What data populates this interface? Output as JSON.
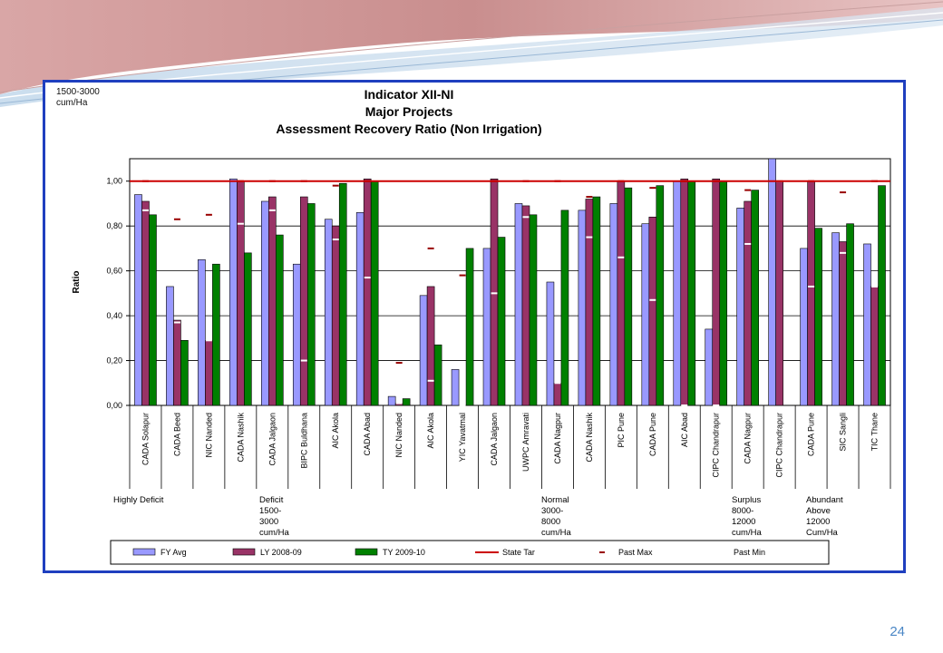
{
  "range_note": "1500-3000\ncum/Ha",
  "page_number": "24",
  "colors": {
    "fy_avg": "#9999ff",
    "ly": "#993366",
    "ty": "#008000",
    "state_target": "#cc0000",
    "past_max": "#990000",
    "past_min": "#ffffff",
    "frame": "#1f3fbf"
  },
  "chart_data": {
    "type": "bar",
    "title": [
      "Indicator XII-NI",
      "Major Projects",
      "Assessment Recovery Ratio (Non Irrigation)"
    ],
    "ylabel": "Ratio",
    "ylim": [
      0,
      1.1
    ],
    "yticks": [
      "0,00",
      "0,20",
      "0,40",
      "0,60",
      "0,80",
      "1,00"
    ],
    "categories": [
      "CADA Solapur",
      "CADA Beed",
      "NIC Nanded",
      "CADA Nashik",
      "CADA Jalgaon",
      "BIPC Buldhana",
      "AIC Akola",
      "CADA Abad",
      "NIC Nanded",
      "AIC Akola",
      "YIC Yavatmal",
      "CADA Jalgaon",
      "UWPC Amravati",
      "CADA Nagpur",
      "CADA Nashik",
      "PIC Pune",
      "CADA Pune",
      "AIC Abad",
      "CIPC Chandrapur",
      "CADA Nagpur",
      "CIPC Chandrapur",
      "CADA Pune",
      "SIC Sangli",
      "TIC Thane"
    ],
    "series": [
      {
        "name": "FY Avg",
        "values": [
          0.94,
          0.53,
          0.65,
          1.01,
          0.91,
          0.63,
          0.83,
          0.86,
          0.04,
          0.49,
          0.16,
          0.7,
          0.9,
          0.55,
          0.87,
          0.9,
          0.81,
          1.0,
          0.34,
          0.88,
          1.1,
          0.7,
          0.77,
          0.72
        ]
      },
      {
        "name": "LY 2008-09",
        "values": [
          0.91,
          0.38,
          0.29,
          1.0,
          0.93,
          0.93,
          0.8,
          1.01,
          0.01,
          0.53,
          0.0,
          1.01,
          0.89,
          0.1,
          0.92,
          1.0,
          0.84,
          1.01,
          1.01,
          0.91,
          1.0,
          1.0,
          0.73,
          0.53
        ]
      },
      {
        "name": "TY 2009-10",
        "values": [
          0.85,
          0.29,
          0.63,
          0.68,
          0.76,
          0.9,
          0.99,
          1.0,
          0.03,
          0.27,
          0.7,
          0.75,
          0.85,
          0.87,
          0.93,
          0.97,
          0.98,
          1.0,
          1.0,
          0.96,
          0.0,
          0.79,
          0.81,
          0.98
        ]
      }
    ],
    "past_max": [
      1.0,
      0.83,
      0.85,
      1.0,
      1.0,
      1.0,
      0.98,
      1.0,
      0.19,
      0.7,
      0.58,
      1.0,
      1.0,
      1.0,
      0.93,
      1.0,
      0.97,
      1.0,
      1.0,
      0.96,
      1.0,
      1.0,
      0.95,
      1.0
    ],
    "past_min": [
      0.87,
      0.37,
      0.29,
      0.81,
      0.87,
      0.2,
      0.74,
      0.57,
      0.01,
      0.11,
      0.0,
      0.5,
      0.84,
      0.1,
      0.75,
      0.66,
      0.47,
      0.0,
      0.0,
      0.72,
      1.0,
      0.53,
      0.68,
      0.53
    ],
    "state_target": 1.0,
    "legend": {
      "placement": "bottom",
      "items": [
        {
          "label": "FY Avg",
          "kind": "bar",
          "color": "#9999ff"
        },
        {
          "label": "LY 2008-09",
          "kind": "bar",
          "color": "#993366"
        },
        {
          "label": "TY 2009-10",
          "kind": "bar",
          "color": "#008000"
        },
        {
          "label": "State Tar",
          "kind": "line",
          "color": "#cc0000"
        },
        {
          "label": "Past Max",
          "kind": "dash",
          "color": "#990000"
        },
        {
          "label": "Past Min",
          "kind": "dash",
          "color": "#ffffff"
        }
      ]
    },
    "groups": [
      {
        "label": "Highly Deficit",
        "start": 0
      },
      {
        "label": "Deficit\n1500-\n3000\ncum/Ha",
        "start": 4
      },
      {
        "label": "Normal\n3000-\n8000\ncum/Ha",
        "start": 13
      },
      {
        "label": "Surplus\n8000-\n12000\ncum/Ha",
        "start": 19
      },
      {
        "label": "Abundant\nAbove\n12000\nCum/Ha",
        "start": 21
      }
    ]
  }
}
